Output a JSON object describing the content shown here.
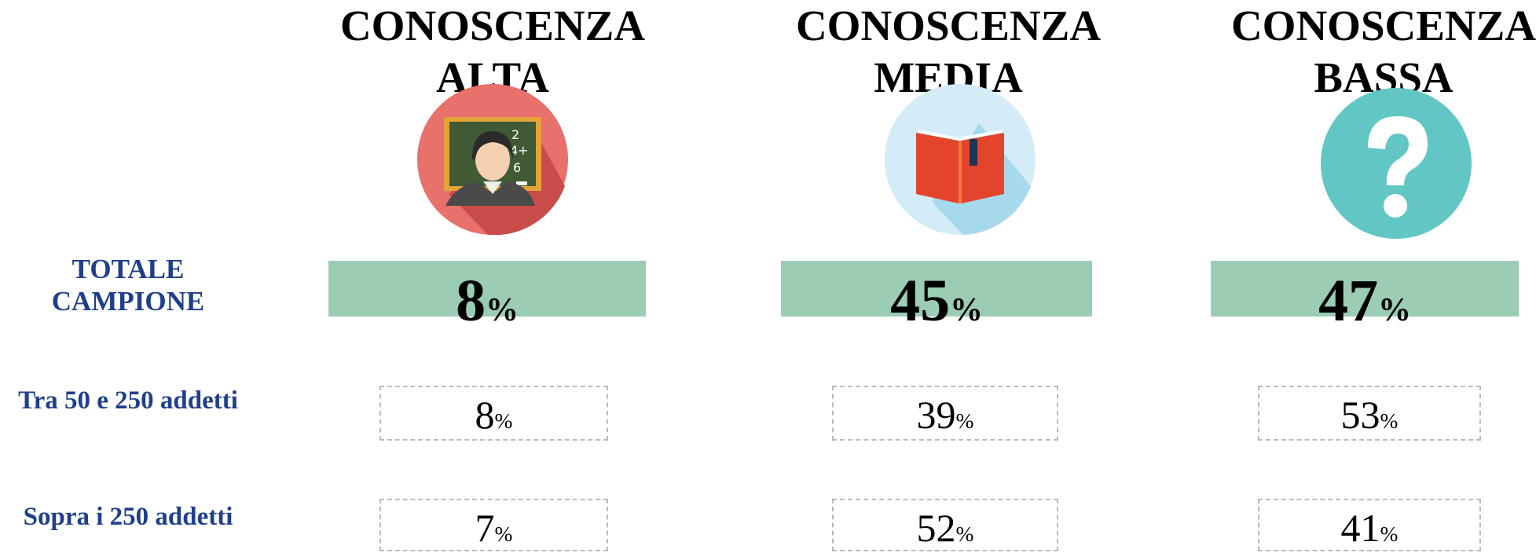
{
  "columns": [
    "CONOSCENZA ALTA",
    "CONOSCENZA MEDIA",
    "CONOSCENZA BASSA"
  ],
  "unit": "%",
  "rows": [
    {
      "label": "TOTALE CAMPIONE",
      "values": [
        8,
        45,
        47
      ]
    },
    {
      "label": "Tra 50 e 250 addetti",
      "values": [
        8,
        39,
        53
      ]
    },
    {
      "label": "Sopra i 250 addetti",
      "values": [
        7,
        52,
        41
      ]
    }
  ]
}
